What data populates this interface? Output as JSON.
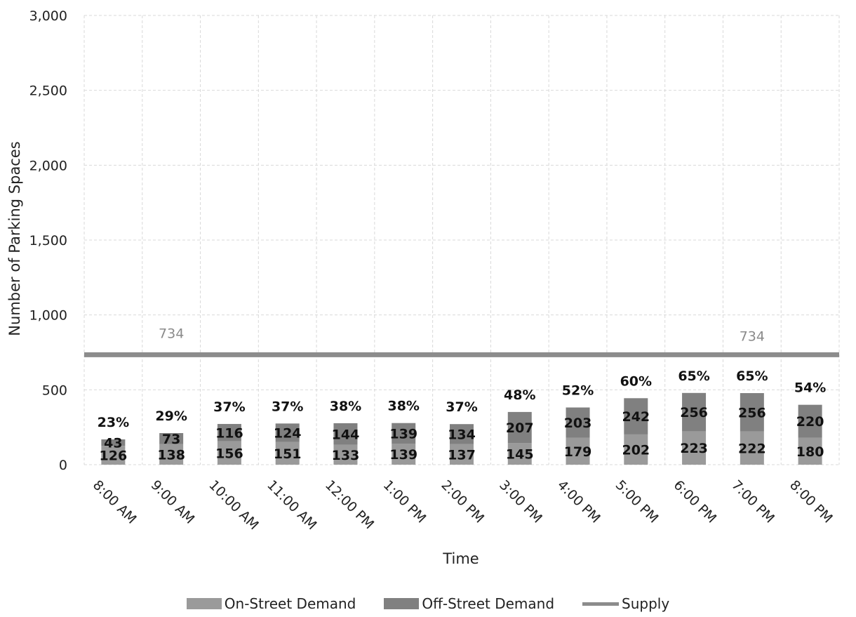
{
  "chart_data": {
    "type": "bar",
    "stacked": true,
    "xlabel": "Time",
    "ylabel": "Number of Parking Spaces",
    "ylim": [
      0,
      3000
    ],
    "yticks": [
      "0",
      "500",
      "1,000",
      "1,500",
      "2,000",
      "2,500",
      "3,000"
    ],
    "categories": [
      "8:00 AM",
      "9:00 AM",
      "10:00 AM",
      "11:00 AM",
      "12:00 PM",
      "1:00 PM",
      "2:00 PM",
      "3:00 PM",
      "4:00 PM",
      "5:00 PM",
      "6:00 PM",
      "7:00 PM",
      "8:00 PM"
    ],
    "series": [
      {
        "name": "On-Street Demand",
        "color": "#9a9a9a",
        "values": [
          126,
          138,
          156,
          151,
          133,
          139,
          137,
          145,
          179,
          202,
          223,
          222,
          180
        ]
      },
      {
        "name": "Off-Street Demand",
        "color": "#808080",
        "values": [
          43,
          73,
          116,
          124,
          144,
          139,
          134,
          207,
          203,
          242,
          256,
          256,
          220
        ]
      }
    ],
    "percent_labels": [
      "23%",
      "29%",
      "37%",
      "37%",
      "38%",
      "38%",
      "37%",
      "48%",
      "52%",
      "60%",
      "65%",
      "65%",
      "54%"
    ],
    "supply": {
      "name": "Supply",
      "value": 734,
      "color": "#8c8c8c",
      "labels": [
        "734",
        "734"
      ]
    },
    "grid": true,
    "legend_position": "bottom"
  }
}
